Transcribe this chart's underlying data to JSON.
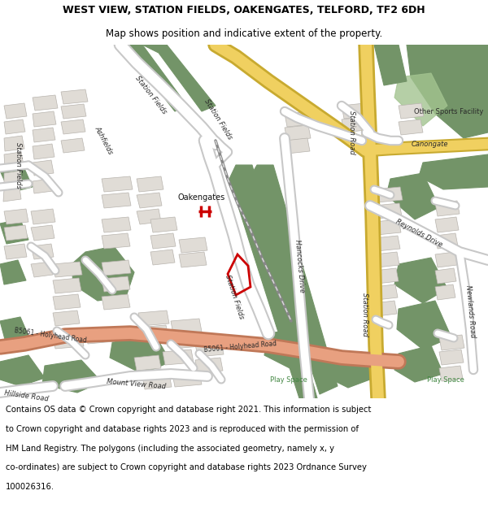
{
  "title_line1": "WEST VIEW, STATION FIELDS, OAKENGATES, TELFORD, TF2 6DH",
  "title_line2": "Map shows position and indicative extent of the property.",
  "footer_text": "Contains OS data © Crown copyright and database right 2021. This information is subject to Crown copyright and database rights 2023 and is reproduced with the permission of HM Land Registry. The polygons (including the associated geometry, namely x, y co-ordinates) are subject to Crown copyright and database rights 2023 Ordnance Survey 100026316.",
  "map_bg": "#f2f0ed",
  "road_white": "#ffffff",
  "road_outline": "#c8c8c8",
  "green": "#739468",
  "green_light": "#a3c490",
  "building_fill": "#e0dcd6",
  "building_edge": "#b8b4ae",
  "red": "#cc0000",
  "yellow_road": "#f0d060",
  "yellow_outline": "#c8aa30",
  "salmon_road": "#e8a080",
  "salmon_outline": "#c07858",
  "title_fs": 9,
  "subtitle_fs": 8.5,
  "footer_fs": 7.2,
  "label_fs": 6.0
}
